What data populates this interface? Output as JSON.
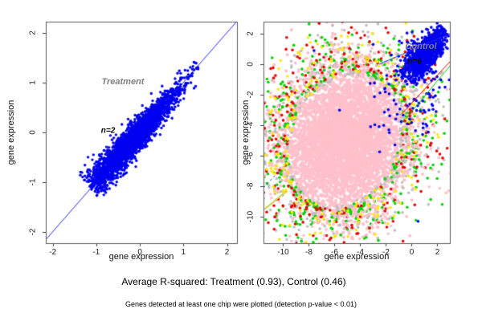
{
  "figure": {
    "captions": [
      "Average R-squared: Treatment (0.93), Control (0.46)",
      "Genes detected at least one chip were plotted (detection p-value < 0.01)"
    ]
  },
  "chart_data": [
    {
      "type": "scatter",
      "panel": "Treatment",
      "xlabel": "gene expression",
      "ylabel": "gene expression",
      "xlim": [
        -2.16,
        2.23
      ],
      "ylim": [
        -2.23,
        2.22
      ],
      "xticks": [
        -2,
        -1,
        0,
        1,
        2
      ],
      "yticks": [
        2,
        1,
        0,
        -1,
        -2
      ],
      "annotations": [
        {
          "text": "Treatment",
          "x": -0.39,
          "y": 1.01,
          "color": "#7f7f7f",
          "size": 11
        },
        {
          "text": "n=2",
          "x": -0.73,
          "y": 0.03,
          "color": "#000000",
          "size": 10
        }
      ],
      "lines": [
        {
          "x1": -2.16,
          "y1": -2.16,
          "x2": 2.23,
          "y2": 2.23,
          "color": "#2929ff",
          "w": 1,
          "under": true
        }
      ],
      "series": [
        {
          "name": "treatment-genes",
          "color": "#0000f0",
          "n": 2800,
          "r": 1.7,
          "gen": {
            "cx": -0.18,
            "cy": -0.18,
            "sa": 0.52,
            "sp": 0.06,
            "grow": 0.7,
            "tmin": -0.95,
            "tmax": 1.55
          }
        }
      ]
    },
    {
      "type": "scatter",
      "panel": "Control",
      "xlabel": "gene expression",
      "ylabel": "gene expression",
      "xlim": [
        -11.53,
        2.97
      ],
      "ylim": [
        -11.73,
        2.79
      ],
      "xticks": [
        -10,
        -8,
        -6,
        -4,
        -2,
        0,
        2
      ],
      "yticks": [
        2,
        0,
        -2,
        -4,
        -6,
        -8,
        -10
      ],
      "annotations": [
        {
          "text": "Control",
          "x": 0.72,
          "y": 1.16,
          "color": "#7f7f7f",
          "size": 11
        },
        {
          "text": "n=6",
          "x": 0.22,
          "y": 0.16,
          "color": "#000000",
          "size": 10
        }
      ],
      "lines": [
        {
          "x1": -2.53,
          "y1": 0.0,
          "x2": 2.97,
          "y2": 2.0,
          "color": "#2929ff",
          "w": 1
        },
        {
          "x1": -0.78,
          "y1": -3.26,
          "x2": 2.97,
          "y2": 0.16,
          "color": "#e80000",
          "w": 1
        },
        {
          "x1": -0.47,
          "y1": -3.58,
          "x2": 2.97,
          "y2": -0.11,
          "color": "#00c000",
          "w": 1
        },
        {
          "x1": -11.53,
          "y1": -8.1,
          "x2": -10.3,
          "y2": -7.0,
          "color": "#2929ff",
          "w": 1,
          "dash": [
            3,
            3
          ]
        },
        {
          "x1": -11.45,
          "y1": -9.5,
          "x2": -9.7,
          "y2": -8.3,
          "color": "#cfcf4d",
          "w": 2
        }
      ],
      "series": [
        {
          "name": "control-dense-core",
          "color": "#ffc0cb",
          "n": 5200,
          "r": 2.0,
          "gen": {
            "cx": -5.2,
            "cy": -5.0,
            "sa": 1.85,
            "sp": 1.5,
            "tmin": -3.7,
            "tmax": 3.7
          }
        },
        {
          "name": "control-chip-gray",
          "color": "#bebebe",
          "n": 520,
          "r": 1.8,
          "gen": {
            "cx": -5.2,
            "cy": -5.0,
            "sa": 2.1,
            "sp": 1.7,
            "hole": [
              3.3,
              2.7
            ]
          }
        },
        {
          "name": "control-chip-green",
          "color": "#00d300",
          "n": 400,
          "r": 1.8,
          "gen": {
            "cx": -5.2,
            "cy": -5.0,
            "sa": 2.3,
            "sp": 1.9,
            "hole": [
              3.4,
              2.8
            ]
          }
        },
        {
          "name": "control-chip-red",
          "color": "#e80000",
          "n": 300,
          "r": 1.8,
          "gen": {
            "cx": -5.2,
            "cy": -5.0,
            "sa": 2.35,
            "sp": 2.0,
            "hole": [
              3.45,
              2.9
            ]
          }
        },
        {
          "name": "control-chip-yellow",
          "color": "#ffe800",
          "n": 240,
          "r": 1.8,
          "gen": {
            "cx": -5.2,
            "cy": -5.0,
            "sa": 2.25,
            "sp": 1.85,
            "hole": [
              3.4,
              2.8
            ]
          }
        },
        {
          "name": "control-chip-pink-outliers",
          "color": "#ffc0cb",
          "n": 260,
          "r": 1.8,
          "gen": {
            "cx": -5.2,
            "cy": -5.0,
            "sa": 2.5,
            "sp": 2.1,
            "hole": [
              3.6,
              3.0
            ]
          }
        },
        {
          "name": "control-blue-sparse",
          "color": "#0000f0",
          "n": 120,
          "r": 1.8,
          "gen": {
            "cx": 0.2,
            "cy": -1.2,
            "sa": 1.5,
            "sp": 0.9,
            "hole": [
              1.3,
              0.6
            ]
          }
        },
        {
          "name": "control-blue-cluster",
          "color": "#0000f0",
          "n": 1100,
          "r": 1.8,
          "gen": {
            "cx": 1.05,
            "cy": 0.68,
            "sa": 0.8,
            "sp": 0.22,
            "grow": 0.8,
            "tmin": -1.7,
            "tmax": 1.55
          }
        },
        {
          "name": "control-blue-singles",
          "color": "#0000f0",
          "r": 1.8,
          "points": [
            [
              0.5,
              -10.3
            ],
            [
              -7.6,
              0.9
            ],
            [
              -3.0,
              1.3
            ],
            [
              1.9,
              -3.1
            ]
          ]
        }
      ]
    }
  ]
}
